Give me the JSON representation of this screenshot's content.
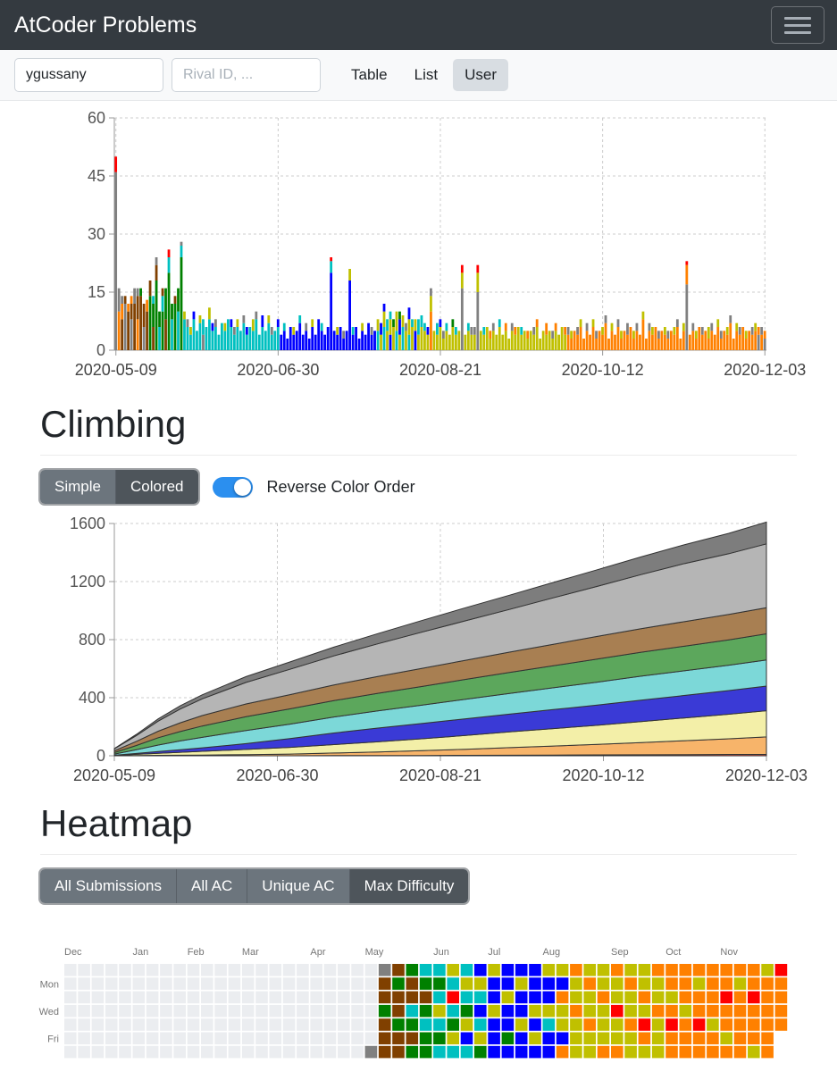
{
  "navbar": {
    "title": "AtCoder Problems"
  },
  "toolbar": {
    "user_id_value": "ygussany",
    "rival_placeholder": "Rival ID, ...",
    "buttons": [
      "Table",
      "List",
      "User"
    ],
    "active_button": "User"
  },
  "sections": {
    "climbing": {
      "title": "Climbing",
      "controls": {
        "simple": "Simple",
        "colored": "Colored",
        "active": "Colored",
        "toggle_label": "Reverse Color Order",
        "toggle_on": true,
        "toggle_color": "#2b8fef"
      }
    },
    "heatmap": {
      "title": "Heatmap",
      "buttons": [
        "All Submissions",
        "All AC",
        "Unique AC",
        "Max Difficulty"
      ],
      "active_button": "Max Difficulty"
    }
  },
  "chart_data": [
    {
      "type": "bar",
      "title": "daily submissions stacked by difficulty color",
      "x_tick_labels": [
        "2020-05-09",
        "2020-06-30",
        "2020-08-21",
        "2020-10-12",
        "2020-12-03"
      ],
      "x_tick_indices": [
        0,
        52,
        104,
        156,
        208
      ],
      "y_ticks": [
        0,
        15,
        30,
        45,
        60
      ],
      "ylim": [
        0,
        60
      ],
      "grid": "dashed",
      "palette": {
        "a": "#808080",
        "w": "#804000",
        "g": "#008000",
        "c": "#00C0C0",
        "b": "#0000FF",
        "y": "#C0C000",
        "o": "#FF8000",
        "r": "#FF0000"
      },
      "bars": [
        "a46r4",
        "o10a6",
        "w8o4a2",
        "a12w2",
        "w10o2",
        "a8w4o2",
        "w12a4",
        "o8w6a2",
        "w14g2",
        "a6w6",
        "w10o3",
        "g14w4",
        "w6g6c2",
        "g18w4a2",
        "c6g4",
        "g10c4w2",
        "w8g8",
        "g20c4r2",
        "c8g4",
        "g12w2",
        "c10g6",
        "g24c3a1",
        "c8y2",
        "c6a2",
        "c4y2",
        "c8b2",
        "c5",
        "c7y2",
        "a4c4",
        "c6",
        "c8y3",
        "c5b2",
        "c6a2",
        "c4",
        "c7",
        "c5y2",
        "c8",
        "c6b2",
        "c4a2",
        "c6y2",
        "c5",
        "c7a2",
        "c4b2",
        "c6",
        "c5y3",
        "c8a2",
        "c4",
        "c6b3",
        "c5",
        "c7y2",
        "c4a2",
        "c5",
        "c6b2",
        "b4",
        "b5c2",
        "b3",
        "b6",
        "b4y2",
        "b5",
        "b7c2",
        "b4",
        "b5a2",
        "b3",
        "b6y2",
        "b4",
        "b8",
        "b5c2",
        "b4",
        "b6",
        "b20c3r1",
        "b5",
        "b4y2",
        "b6",
        "b3a2",
        "b5",
        "b18y3",
        "b4c2",
        "b6",
        "b3",
        "b5y2",
        "b4",
        "b7",
        "b4a2",
        "b5",
        "c5y3",
        "y4b3",
        "c6y4b2",
        "y5c3",
        "b4y4c2",
        "y6g2",
        "c5y5",
        "y4b4g2",
        "c6y3",
        "y5a2",
        "c4y4b3",
        "y6c2",
        "b5y3",
        "y4c4",
        "y6c3",
        "y5c2",
        "y4b2",
        "o10y4a2",
        "y5",
        "y4c3",
        "y6b2",
        "y3a2",
        "y5c2",
        "y4",
        "y6g2",
        "y4c2",
        "y5",
        "a16y4r2",
        "y4",
        "y5c2",
        "y4a2",
        "y4a2",
        "a15y5r2",
        "y5",
        "y4c2",
        "y6",
        "y3o2",
        "y5a2",
        "y4",
        "y6c2",
        "y4",
        "y5o2",
        "y3",
        "y5a2",
        "y4o2",
        "y6",
        "y4c2",
        "y5",
        "y3o2",
        "y5",
        "y4a2",
        "y6o2",
        "y3",
        "y5",
        "y4o3",
        "y5",
        "y3a2",
        "y5o2",
        "y4",
        "y6",
        "y4o2",
        "o4a2",
        "o3y2",
        "o5",
        "o4a2",
        "o6y2",
        "o3",
        "o5a2",
        "o4",
        "o6y2",
        "o3a2",
        "o5",
        "o4y2",
        "o7a2",
        "o3",
        "o5y2",
        "o4",
        "o6a2",
        "o3y2",
        "o5",
        "o4a3",
        "o6",
        "o3y2",
        "o5a2",
        "o4",
        "o8y2",
        "o3",
        "o5a2",
        "o4y2",
        "o6",
        "o3a2",
        "o5",
        "o4y2",
        "o3a2",
        "o5",
        "o4y2",
        "o6a2",
        "o3",
        "o5y2",
        "a17o5r1",
        "o4",
        "o5a2",
        "o3y2",
        "o6",
        "o4a2",
        "o5",
        "o3y3",
        "o5a2",
        "o4",
        "o6y2",
        "o3a2",
        "o5",
        "o4y2",
        "o7a2",
        "o3",
        "o5y2",
        "o4a2",
        "o6",
        "o3y2",
        "o5",
        "o4a2",
        "o5y2",
        "a4o2",
        "o4a2",
        "a3o2"
      ]
    },
    {
      "type": "area",
      "stacked": true,
      "title": "Climbing - cumulative AC count stacked by difficulty color (reverse color order)",
      "x_tick_labels": [
        "2020-05-09",
        "2020-06-30",
        "2020-08-21",
        "2020-10-12",
        "2020-12-03"
      ],
      "x_tick_values": [
        0,
        52,
        104,
        156,
        208
      ],
      "x": [
        0,
        7,
        14,
        21,
        28,
        42,
        56,
        70,
        84,
        98,
        112,
        126,
        140,
        154,
        168,
        182,
        196,
        208
      ],
      "y_ticks": [
        0,
        400,
        800,
        1200,
        1600
      ],
      "ylim": [
        0,
        1600
      ],
      "grid": "dashed",
      "series": [
        {
          "name": "red",
          "color": "#d14b42",
          "values": [
            0,
            0,
            0,
            0,
            0,
            0,
            0,
            1,
            1,
            2,
            3,
            4,
            5,
            6,
            7,
            8,
            9,
            10
          ]
        },
        {
          "name": "orange",
          "color": "#f7b46a",
          "values": [
            1,
            2,
            3,
            4,
            5,
            8,
            12,
            18,
            25,
            33,
            42,
            52,
            62,
            72,
            84,
            96,
            108,
            120
          ]
        },
        {
          "name": "yellow",
          "color": "#f3efa8",
          "values": [
            2,
            8,
            14,
            20,
            26,
            36,
            46,
            58,
            70,
            82,
            95,
            108,
            120,
            132,
            145,
            157,
            169,
            180
          ]
        },
        {
          "name": "blue",
          "color": "#3a3ad6",
          "values": [
            1,
            6,
            12,
            18,
            24,
            40,
            60,
            80,
            95,
            105,
            115,
            123,
            131,
            139,
            147,
            155,
            163,
            170
          ]
        },
        {
          "name": "cyan",
          "color": "#7cd8d8",
          "values": [
            8,
            25,
            45,
            60,
            72,
            90,
            100,
            110,
            118,
            126,
            134,
            142,
            150,
            158,
            165,
            170,
            175,
            180
          ]
        },
        {
          "name": "green",
          "color": "#5ca75c",
          "values": [
            10,
            30,
            50,
            65,
            78,
            95,
            105,
            113,
            121,
            129,
            137,
            145,
            152,
            159,
            165,
            170,
            175,
            180
          ]
        },
        {
          "name": "brown",
          "color": "#a87f52",
          "values": [
            12,
            28,
            45,
            60,
            72,
            88,
            98,
            108,
            116,
            124,
            132,
            140,
            148,
            156,
            163,
            169,
            175,
            180
          ]
        },
        {
          "name": "gray",
          "color": "#b5b5b5",
          "values": [
            14,
            40,
            70,
            95,
            115,
            148,
            175,
            200,
            225,
            250,
            272,
            294,
            320,
            345,
            372,
            400,
            418,
            440
          ]
        },
        {
          "name": "black",
          "color": "#7d7d7d",
          "values": [
            2,
            8,
            15,
            22,
            28,
            40,
            50,
            60,
            70,
            80,
            90,
            98,
            106,
            114,
            122,
            130,
            140,
            150
          ]
        }
      ]
    },
    {
      "type": "heatmap",
      "title": "Max Difficulty calendar heatmap",
      "rows": 7,
      "empty_color": "#ebedf0",
      "palette": {
        ".": "#ebedf0",
        "a": "#808080",
        "w": "#804000",
        "g": "#008000",
        "c": "#00C0C0",
        "b": "#0000FF",
        "y": "#C0C000",
        "o": "#FF8000",
        "r": "#FF0000"
      },
      "day_labels": [
        {
          "label": "Mon",
          "row": 1
        },
        {
          "label": "Wed",
          "row": 3
        },
        {
          "label": "Fri",
          "row": 5
        }
      ],
      "month_labels": [
        {
          "label": "Dec",
          "week": 0
        },
        {
          "label": "Jan",
          "week": 5
        },
        {
          "label": "Feb",
          "week": 9
        },
        {
          "label": "Mar",
          "week": 13
        },
        {
          "label": "Apr",
          "week": 18
        },
        {
          "label": "May",
          "week": 22
        },
        {
          "label": "Jun",
          "week": 27
        },
        {
          "label": "Jul",
          "week": 31
        },
        {
          "label": "Aug",
          "week": 35
        },
        {
          "label": "Sep",
          "week": 40
        },
        {
          "label": "Oct",
          "week": 44
        },
        {
          "label": "Nov",
          "week": 48
        }
      ],
      "weeks": [
        ".......",
        ".......",
        ".......",
        ".......",
        ".......",
        ".......",
        ".......",
        ".......",
        ".......",
        ".......",
        ".......",
        ".......",
        ".......",
        ".......",
        ".......",
        ".......",
        ".......",
        ".......",
        ".......",
        ".......",
        ".......",
        ".......",
        "......a",
        "awwgwww",
        "wgwwgww",
        "gwwcgwg",
        "cgwgcgg",
        "cgcycgc",
        "ycrcgyc",
        "cycgybc",
        "bycbcyg",
        "ybbybbb",
        "bbybbgb",
        "bybbybb",
        "bbbybyb",
        "ybbycbb",
        "yboyybo",
        "oyyoyyy",
        "yoyyoyy",
        "yyoyyyo",
        "oyyryyo",
        "yoyyoyy",
        "yyoyroy",
        "oyyoyyy",
        "ooyoroo",
        "oooyooo",
        "oyooroo",
        "ooooyoo",
        "oorooyo",
        "oyooooo",
        "ooroooy",
        "yoooooo",
        "rooooxx"
      ]
    }
  ]
}
